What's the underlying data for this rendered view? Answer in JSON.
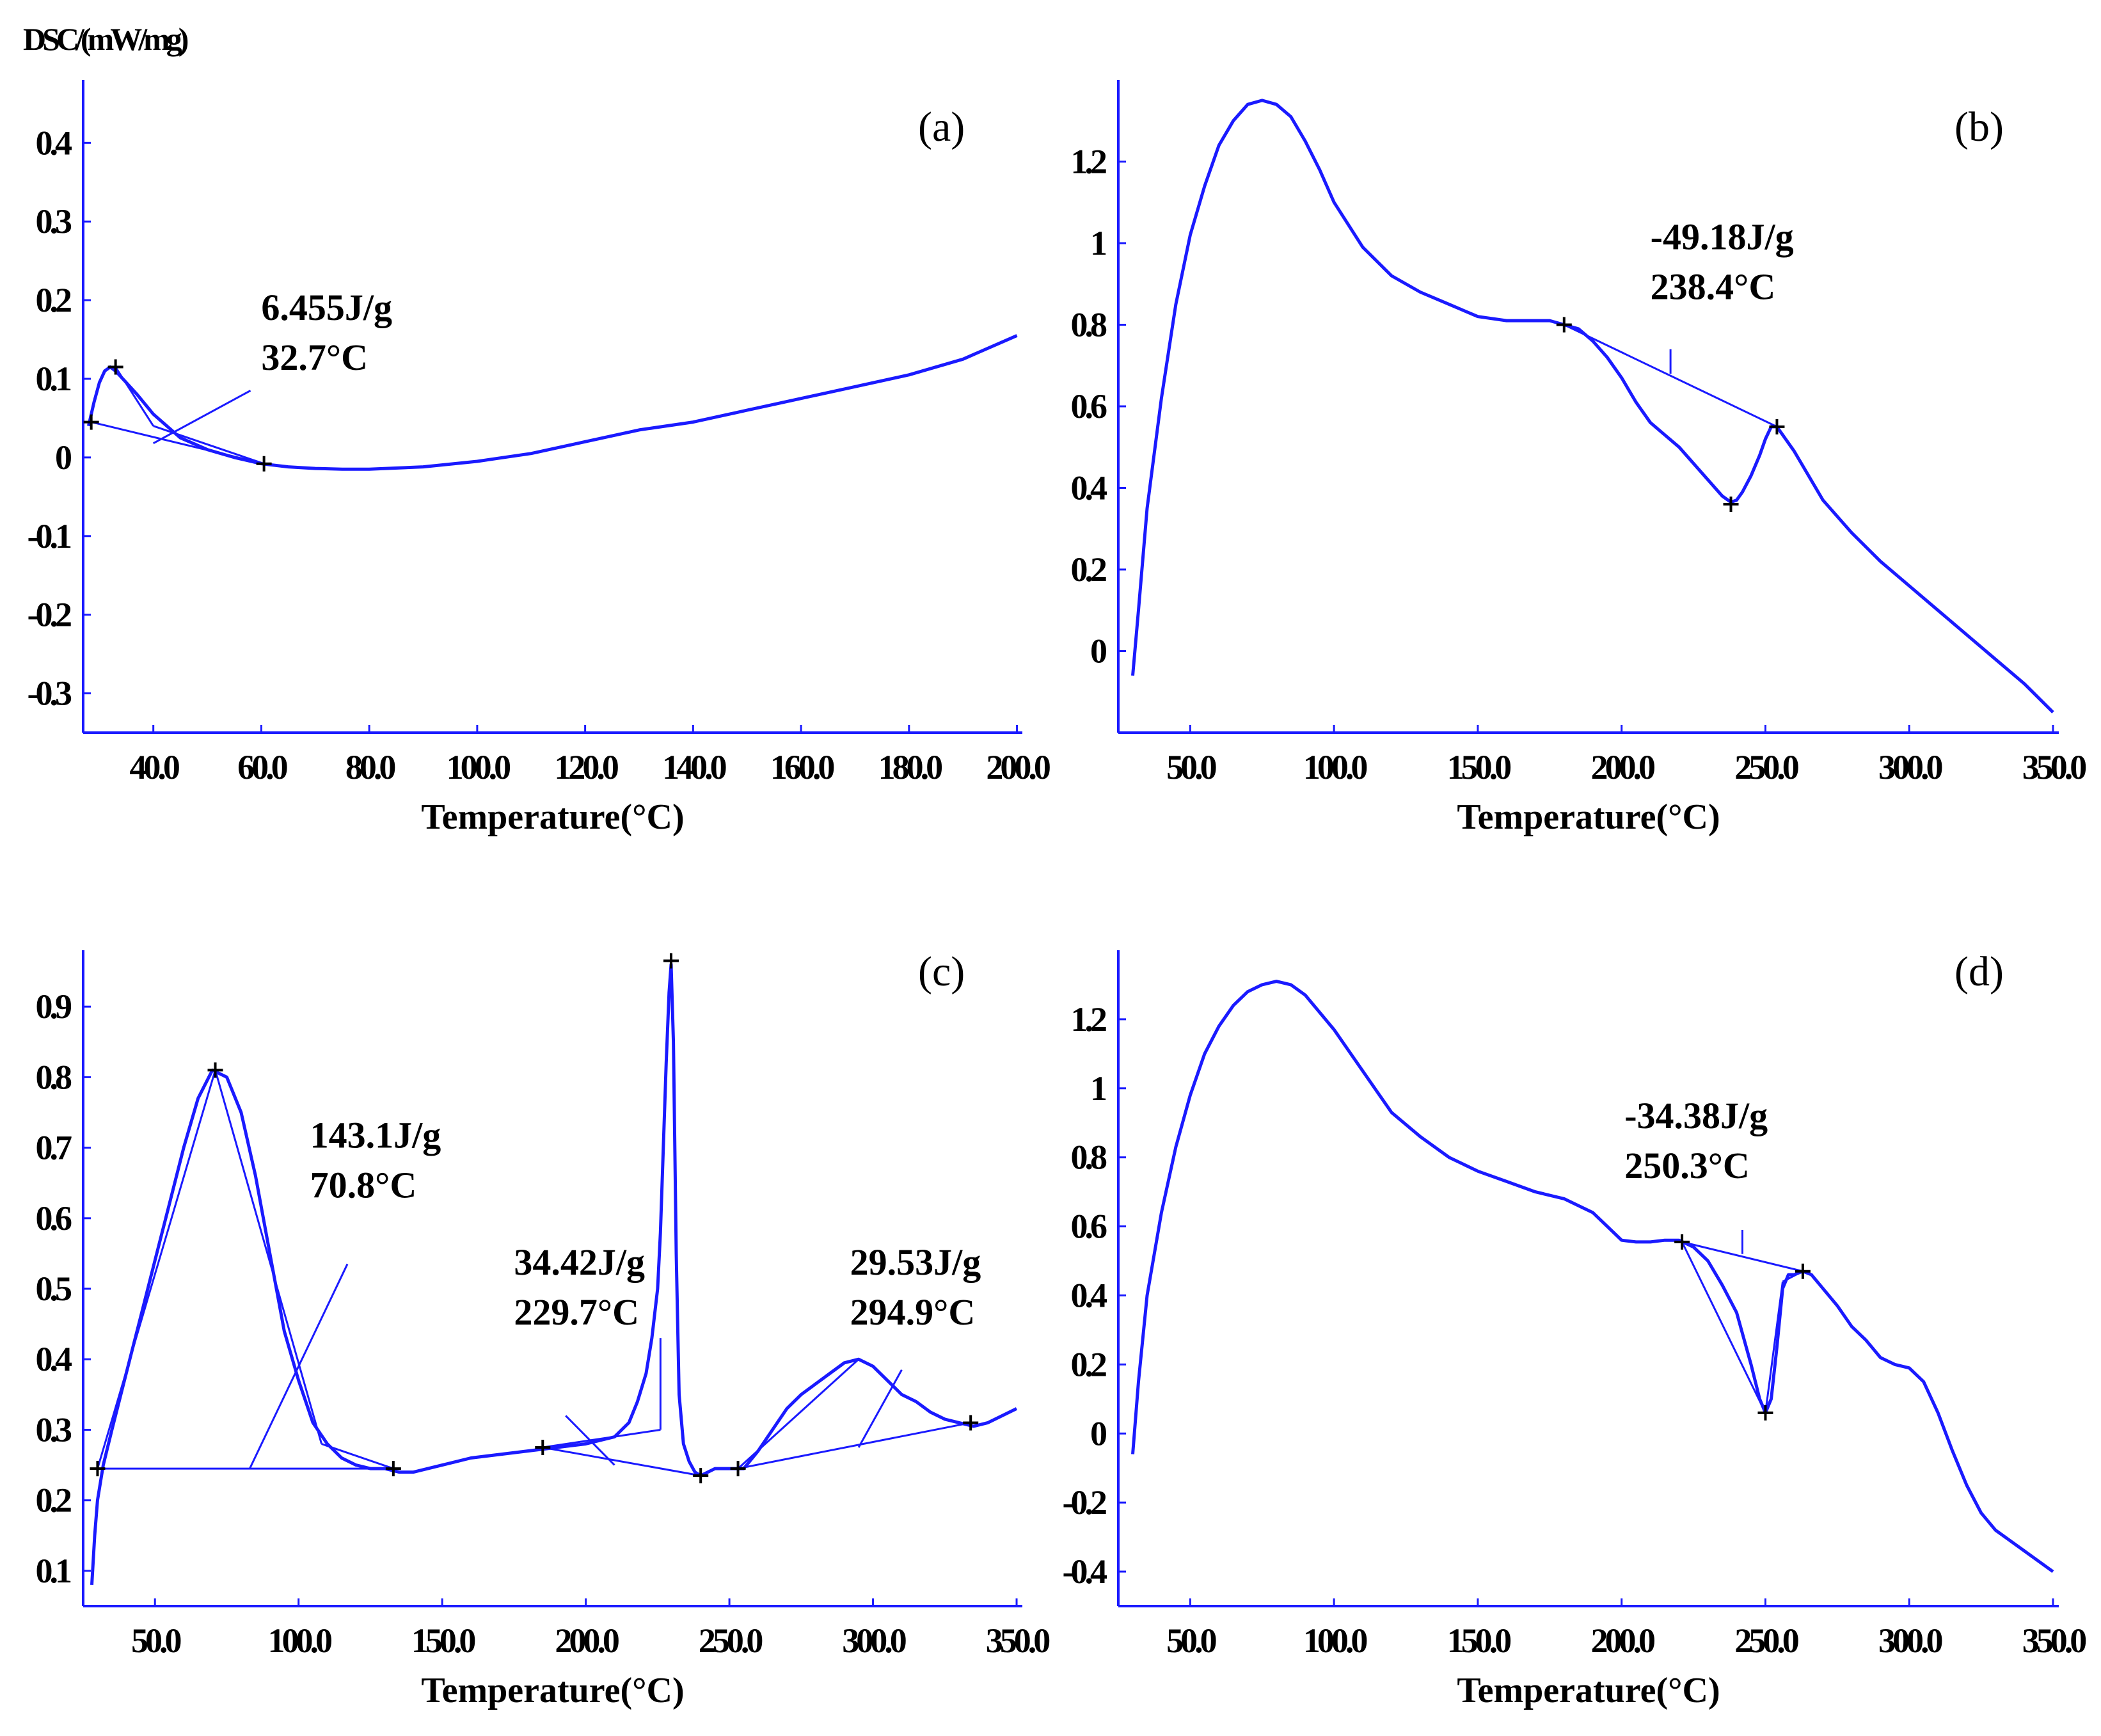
{
  "figure": {
    "y_label": "DSC/(mW/mg)",
    "curve_color": "#1a1aff",
    "text_color": "#000000"
  },
  "chart_data": [
    {
      "type": "line",
      "panel_label": "(a)",
      "xlabel": "Temperature(°C)",
      "xlim": [
        27,
        201
      ],
      "ylim": [
        -0.35,
        0.48
      ],
      "x_ticks": [
        40,
        60,
        80,
        100,
        120,
        140,
        160,
        180,
        200
      ],
      "x_tick_labels": [
        "40.0",
        "60.0",
        "80.0",
        "100.0",
        "120.0",
        "140.0",
        "160.0",
        "180.0",
        "200.0"
      ],
      "y_ticks": [
        -0.3,
        -0.2,
        -0.1,
        0,
        0.1,
        0.2,
        0.3,
        0.4
      ],
      "y_tick_labels": [
        "-0.3",
        "-0.2",
        "-0.1",
        "0",
        "0.1",
        "0.2",
        "0.3",
        "0.4"
      ],
      "series": [
        {
          "name": "DSC",
          "x": [
            28,
            29,
            30,
            31,
            32,
            33,
            35,
            37,
            40,
            45,
            50,
            55,
            60,
            65,
            70,
            75,
            80,
            90,
            100,
            110,
            120,
            130,
            140,
            150,
            160,
            170,
            180,
            190,
            200
          ],
          "y": [
            0.04,
            0.07,
            0.095,
            0.11,
            0.115,
            0.11,
            0.095,
            0.08,
            0.055,
            0.025,
            0.01,
            0.0,
            -0.008,
            -0.012,
            -0.014,
            -0.015,
            -0.015,
            -0.012,
            -0.005,
            0.005,
            0.02,
            0.035,
            0.045,
            0.06,
            0.075,
            0.09,
            0.105,
            0.125,
            0.155
          ]
        }
      ],
      "markers": [
        {
          "x": 28.5,
          "y": 0.045
        },
        {
          "x": 33,
          "y": 0.115
        },
        {
          "x": 60.5,
          "y": -0.008
        }
      ],
      "baselines": [
        [
          [
            28.5,
            0.045
          ],
          [
            60.5,
            -0.008
          ]
        ],
        [
          [
            33,
            0.115
          ],
          [
            40,
            0.04
          ]
        ],
        [
          [
            40,
            0.04
          ],
          [
            60.5,
            -0.008
          ]
        ]
      ],
      "leaders": [
        [
          [
            40,
            0.018
          ],
          [
            58,
            0.085
          ]
        ]
      ],
      "annotations": [
        {
          "lines": [
            "6.455J/g",
            "32.7°C"
          ],
          "x": 60,
          "y": 0.175
        }
      ]
    },
    {
      "type": "line",
      "panel_label": "(b)",
      "xlabel": "Temperature(°C)",
      "xlim": [
        25,
        352
      ],
      "ylim": [
        -0.2,
        1.4
      ],
      "x_ticks": [
        50,
        100,
        150,
        200,
        250,
        300,
        350
      ],
      "x_tick_labels": [
        "50.0",
        "100.0",
        "150.0",
        "200.0",
        "250.0",
        "300.0",
        "350.0"
      ],
      "y_ticks": [
        0,
        0.2,
        0.4,
        0.6,
        0.8,
        1,
        1.2
      ],
      "y_tick_labels": [
        "0",
        "0.2",
        "0.4",
        "0.6",
        "0.8",
        "1",
        "1.2"
      ],
      "series": [
        {
          "name": "DSC",
          "x": [
            30,
            32,
            35,
            40,
            45,
            50,
            55,
            60,
            65,
            70,
            75,
            80,
            85,
            90,
            95,
            100,
            110,
            120,
            130,
            140,
            150,
            160,
            170,
            175,
            180,
            185,
            190,
            195,
            200,
            205,
            210,
            215,
            220,
            225,
            230,
            235,
            238,
            240,
            242,
            245,
            248,
            250,
            252,
            254,
            256,
            260,
            265,
            270,
            280,
            290,
            300,
            310,
            320,
            330,
            340,
            350
          ],
          "y": [
            -0.06,
            0.1,
            0.35,
            0.62,
            0.85,
            1.02,
            1.14,
            1.24,
            1.3,
            1.34,
            1.35,
            1.34,
            1.31,
            1.25,
            1.18,
            1.1,
            0.99,
            0.92,
            0.88,
            0.85,
            0.82,
            0.81,
            0.81,
            0.81,
            0.8,
            0.79,
            0.76,
            0.72,
            0.67,
            0.61,
            0.56,
            0.53,
            0.5,
            0.46,
            0.42,
            0.38,
            0.365,
            0.37,
            0.39,
            0.43,
            0.48,
            0.52,
            0.55,
            0.55,
            0.53,
            0.49,
            0.43,
            0.37,
            0.29,
            0.22,
            0.16,
            0.1,
            0.04,
            -0.02,
            -0.08,
            -0.15
          ]
        }
      ],
      "markers": [
        {
          "x": 180,
          "y": 0.8
        },
        {
          "x": 238,
          "y": 0.36
        },
        {
          "x": 254,
          "y": 0.55
        }
      ],
      "baselines": [
        [
          [
            180,
            0.8
          ],
          [
            254,
            0.55
          ]
        ]
      ],
      "leaders": [
        [
          [
            217,
            0.74
          ],
          [
            217,
            0.68
          ]
        ]
      ],
      "annotations": [
        {
          "lines": [
            "-49.18J/g",
            "238.4°C"
          ],
          "x": 210,
          "y": 0.985
        }
      ]
    },
    {
      "type": "line",
      "panel_label": "(c)",
      "xlabel": "Temperature(°C)",
      "xlim": [
        25,
        352
      ],
      "ylim": [
        0.05,
        0.98
      ],
      "x_ticks": [
        50,
        100,
        150,
        200,
        250,
        300,
        350
      ],
      "x_tick_labels": [
        "50.0",
        "100.0",
        "150.0",
        "200.0",
        "250.0",
        "300.0",
        "350.0"
      ],
      "y_ticks": [
        0.1,
        0.2,
        0.3,
        0.4,
        0.5,
        0.6,
        0.7,
        0.8,
        0.9
      ],
      "y_tick_labels": [
        "0.1",
        "0.2",
        "0.3",
        "0.4",
        "0.5",
        "0.6",
        "0.7",
        "0.8",
        "0.9"
      ],
      "series": [
        {
          "name": "DSC",
          "x": [
            28,
            29,
            30,
            32,
            35,
            40,
            45,
            50,
            55,
            60,
            65,
            70,
            75,
            80,
            85,
            90,
            95,
            100,
            105,
            110,
            115,
            120,
            125,
            130,
            135,
            140,
            150,
            160,
            170,
            180,
            190,
            200,
            205,
            210,
            215,
            218,
            221,
            223,
            225,
            226,
            227,
            228,
            229,
            229.7,
            230.5,
            231.5,
            232.5,
            234,
            236,
            238,
            240,
            245,
            250,
            255,
            260,
            265,
            270,
            275,
            280,
            285,
            290,
            295,
            300,
            305,
            310,
            315,
            320,
            325,
            330,
            335,
            340,
            345,
            350
          ],
          "y": [
            0.08,
            0.15,
            0.2,
            0.25,
            0.3,
            0.38,
            0.46,
            0.54,
            0.62,
            0.7,
            0.77,
            0.81,
            0.8,
            0.75,
            0.66,
            0.55,
            0.44,
            0.37,
            0.31,
            0.28,
            0.26,
            0.25,
            0.245,
            0.245,
            0.24,
            0.24,
            0.25,
            0.26,
            0.265,
            0.27,
            0.275,
            0.28,
            0.285,
            0.29,
            0.31,
            0.34,
            0.38,
            0.43,
            0.5,
            0.58,
            0.7,
            0.82,
            0.92,
            0.96,
            0.85,
            0.55,
            0.35,
            0.28,
            0.255,
            0.24,
            0.235,
            0.245,
            0.245,
            0.245,
            0.27,
            0.3,
            0.33,
            0.35,
            0.365,
            0.38,
            0.395,
            0.4,
            0.39,
            0.37,
            0.35,
            0.34,
            0.325,
            0.315,
            0.31,
            0.305,
            0.31,
            0.32,
            0.33
          ]
        }
      ],
      "markers": [
        {
          "x": 30,
          "y": 0.245
        },
        {
          "x": 71,
          "y": 0.81
        },
        {
          "x": 133,
          "y": 0.245
        },
        {
          "x": 185,
          "y": 0.275
        },
        {
          "x": 229.7,
          "y": 0.965
        },
        {
          "x": 240,
          "y": 0.235
        },
        {
          "x": 253,
          "y": 0.245
        },
        {
          "x": 334,
          "y": 0.31
        }
      ],
      "baselines": [
        [
          [
            30,
            0.245
          ],
          [
            133,
            0.245
          ]
        ],
        [
          [
            30,
            0.245
          ],
          [
            71,
            0.81
          ]
        ],
        [
          [
            71,
            0.81
          ],
          [
            108,
            0.28
          ]
        ],
        [
          [
            108,
            0.28
          ],
          [
            133,
            0.245
          ]
        ],
        [
          [
            185,
            0.275
          ],
          [
            240,
            0.235
          ]
        ],
        [
          [
            185,
            0.275
          ],
          [
            226,
            0.3
          ]
        ],
        [
          [
            226,
            0.3
          ],
          [
            226,
            0.43
          ]
        ],
        [
          [
            253,
            0.245
          ],
          [
            334,
            0.31
          ]
        ],
        [
          [
            253,
            0.245
          ],
          [
            295,
            0.4
          ]
        ]
      ],
      "leaders": [
        [
          [
            83,
            0.245
          ],
          [
            117,
            0.535
          ]
        ],
        [
          [
            210,
            0.25
          ],
          [
            193,
            0.32
          ]
        ],
        [
          [
            295,
            0.275
          ],
          [
            310,
            0.385
          ]
        ]
      ],
      "annotations": [
        {
          "lines": [
            "143.1J/g",
            "70.8°C"
          ],
          "x": 104,
          "y": 0.7
        },
        {
          "lines": [
            "34.42J/g",
            "229.7°C"
          ],
          "x": 175,
          "y": 0.52
        },
        {
          "lines": [
            "29.53J/g",
            "294.9°C"
          ],
          "x": 292,
          "y": 0.52
        }
      ]
    },
    {
      "type": "line",
      "panel_label": "(d)",
      "xlabel": "Temperature(°C)",
      "xlim": [
        25,
        352
      ],
      "ylim": [
        -0.5,
        1.4
      ],
      "x_ticks": [
        50,
        100,
        150,
        200,
        250,
        300,
        350
      ],
      "x_tick_labels": [
        "50.0",
        "100.0",
        "150.0",
        "200.0",
        "250.0",
        "300.0",
        "350.0"
      ],
      "y_ticks": [
        -0.4,
        -0.2,
        0,
        0.2,
        0.4,
        0.6,
        0.8,
        1,
        1.2
      ],
      "y_tick_labels": [
        "-0.4",
        "-0.2",
        "0",
        "0.2",
        "0.4",
        "0.6",
        "0.8",
        "1",
        "1.2"
      ],
      "series": [
        {
          "name": "DSC",
          "x": [
            30,
            32,
            35,
            40,
            45,
            50,
            55,
            60,
            65,
            70,
            75,
            80,
            85,
            90,
            100,
            110,
            120,
            130,
            140,
            150,
            160,
            170,
            180,
            185,
            190,
            195,
            200,
            205,
            210,
            215,
            220,
            225,
            230,
            235,
            240,
            245,
            248,
            250,
            252,
            254,
            256,
            258,
            260,
            263,
            266,
            270,
            275,
            280,
            285,
            290,
            295,
            300,
            305,
            310,
            315,
            320,
            325,
            330,
            335,
            340,
            345,
            350
          ],
          "y": [
            -0.06,
            0.15,
            0.4,
            0.64,
            0.83,
            0.98,
            1.1,
            1.18,
            1.24,
            1.28,
            1.3,
            1.31,
            1.3,
            1.27,
            1.17,
            1.05,
            0.93,
            0.86,
            0.8,
            0.76,
            0.73,
            0.7,
            0.68,
            0.66,
            0.64,
            0.6,
            0.56,
            0.555,
            0.555,
            0.56,
            0.56,
            0.54,
            0.5,
            0.43,
            0.35,
            0.2,
            0.1,
            0.06,
            0.1,
            0.25,
            0.42,
            0.46,
            0.46,
            0.47,
            0.46,
            0.42,
            0.37,
            0.31,
            0.27,
            0.22,
            0.2,
            0.19,
            0.15,
            0.06,
            -0.05,
            -0.15,
            -0.23,
            -0.28,
            -0.31,
            -0.34,
            -0.37,
            -0.4
          ]
        }
      ],
      "markers": [
        {
          "x": 221,
          "y": 0.555
        },
        {
          "x": 250,
          "y": 0.06
        },
        {
          "x": 263,
          "y": 0.47
        }
      ],
      "baselines": [
        [
          [
            221,
            0.555
          ],
          [
            263,
            0.47
          ]
        ],
        [
          [
            221,
            0.555
          ],
          [
            250,
            0.06
          ]
        ],
        [
          [
            250,
            0.06
          ],
          [
            256,
            0.44
          ]
        ],
        [
          [
            256,
            0.44
          ],
          [
            263,
            0.47
          ]
        ]
      ],
      "leaders": [
        [
          [
            242,
            0.52
          ],
          [
            242,
            0.59
          ]
        ]
      ],
      "annotations": [
        {
          "lines": [
            "-34.38J/g",
            "250.3°C"
          ],
          "x": 201,
          "y": 0.885
        }
      ]
    }
  ]
}
